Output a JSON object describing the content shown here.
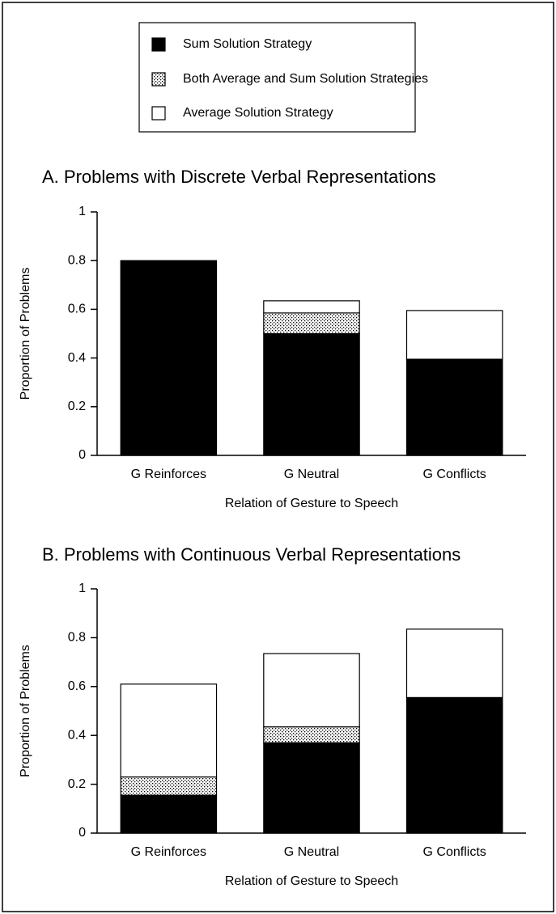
{
  "chart_data": [
    {
      "type": "bar",
      "stacked": true,
      "title": "A.  Problems with Discrete Verbal Representations",
      "xlabel": "Relation of Gesture to Speech",
      "ylabel": "Proportion of Problems",
      "categories": [
        "G Reinforces",
        "G Neutral",
        "G Conflicts"
      ],
      "series": [
        {
          "name": "Sum Solution Strategy",
          "color": "#000000",
          "values": [
            0.8,
            0.5,
            0.395
          ]
        },
        {
          "name": "Both Average and Sum Solution Strategies",
          "color": "#ffffff",
          "hatch": "dots",
          "values": [
            0,
            0.085,
            0
          ]
        },
        {
          "name": "Average Solution Strategy",
          "color": "#ffffff",
          "values": [
            0,
            0.05,
            0.2
          ]
        }
      ],
      "ylim": [
        0,
        1
      ],
      "yticks": [
        0,
        0.2,
        0.4,
        0.6,
        0.8,
        1
      ]
    },
    {
      "type": "bar",
      "stacked": true,
      "title": "B.  Problems with Continuous Verbal Representations",
      "xlabel": "Relation of Gesture to Speech",
      "ylabel": "Proportion of Problems",
      "categories": [
        "G Reinforces",
        "G Neutral",
        "G Conflicts"
      ],
      "series": [
        {
          "name": "Sum Solution Strategy",
          "color": "#000000",
          "values": [
            0.155,
            0.37,
            0.555
          ]
        },
        {
          "name": "Both Average and Sum Solution Strategies",
          "color": "#ffffff",
          "hatch": "dots",
          "values": [
            0.075,
            0.065,
            0
          ]
        },
        {
          "name": "Average Solution Strategy",
          "color": "#ffffff",
          "values": [
            0.38,
            0.3,
            0.28
          ]
        }
      ],
      "ylim": [
        0,
        1
      ],
      "yticks": [
        0,
        0.2,
        0.4,
        0.6,
        0.8,
        1
      ]
    }
  ]
}
